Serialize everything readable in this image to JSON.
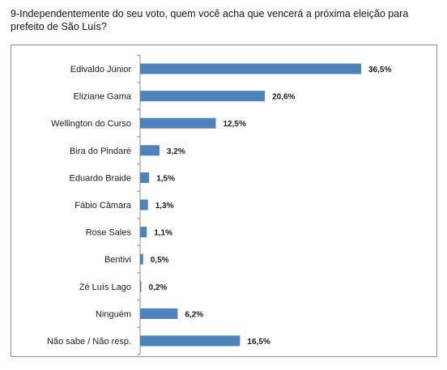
{
  "question": "9-Independentemente do seu voto, quem você acha que vencerá a próxima eleição para prefeito de São Luís?",
  "chart_data": {
    "type": "bar",
    "orientation": "horizontal",
    "categories": [
      "Edivaldo Júnior",
      "Eliziane Gama",
      "Wellington do Curso",
      "Bira do Pindaré",
      "Eduardo Braide",
      "Fábio Câmara",
      "Rose Sales",
      "Bentivi",
      "Zé Luís Lago",
      "Ninguém",
      "Não sabe / Não resp."
    ],
    "values": [
      36.5,
      20.6,
      12.5,
      3.2,
      1.5,
      1.3,
      1.1,
      0.5,
      0.2,
      6.2,
      16.5
    ],
    "value_labels": [
      "36,5%",
      "20,6%",
      "12,5%",
      "3,2%",
      "1,5%",
      "1,3%",
      "1,1%",
      "0,5%",
      "0,2%",
      "6,2%",
      "16,5%"
    ],
    "xlim": [
      0,
      40
    ],
    "grid": false,
    "bar_color": "#4f81bd"
  }
}
